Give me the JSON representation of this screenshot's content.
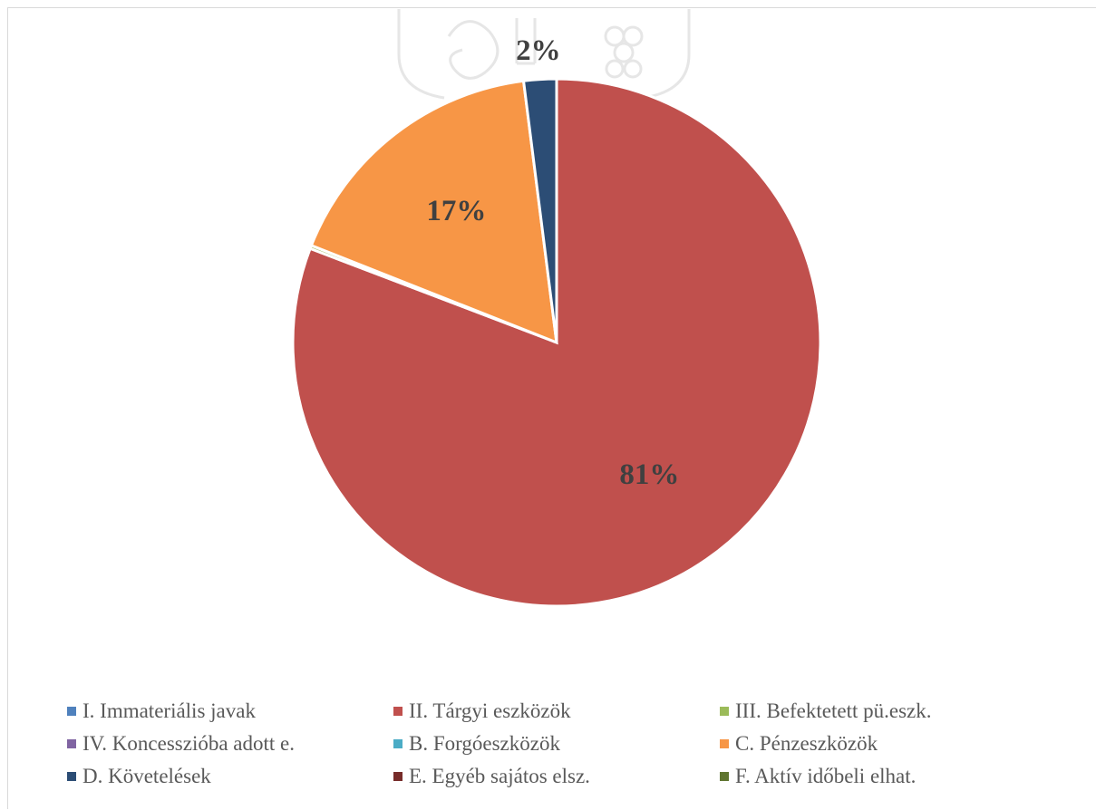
{
  "chart_data": {
    "type": "pie",
    "title": "",
    "legend_position": "bottom",
    "categories": [
      "I. Immateriális javak",
      "II. Tárgyi eszközök",
      "III. Befektetett pü.eszk.",
      "IV. Koncesszióba adott e.",
      "B. Forgóeszközök",
      "C. Pénzeszközök",
      "D. Követelések",
      "E. Egyéb sajátos elsz.",
      "F. Aktív időbeli elhat."
    ],
    "values": [
      0,
      80.8,
      0.2,
      0,
      0,
      17.0,
      2.0,
      0,
      0
    ],
    "data_labels": [
      "",
      "81%",
      "",
      "",
      "",
      "17%",
      "2%",
      "",
      ""
    ],
    "colors": [
      "#4f81bd",
      "#c0504d",
      "#9bbb59",
      "#8064a2",
      "#4bacc6",
      "#f79646",
      "#2c4d75",
      "#772c2a",
      "#5f7530"
    ]
  }
}
